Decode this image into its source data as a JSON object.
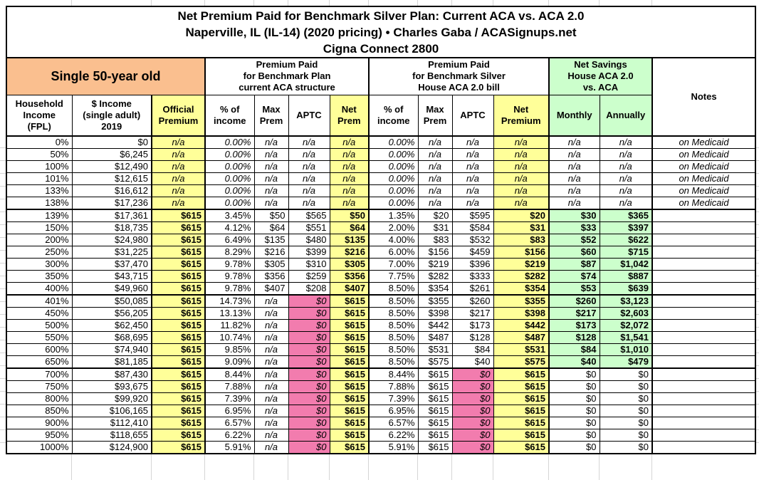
{
  "title": {
    "line1": "Net Premium Paid for Benchmark Silver Plan: Current ACA vs. ACA 2.0",
    "line2": "Naperville, IL (IL-14) (2020 pricing) • Charles Gaba / ACASignups.net",
    "line3": "Cigna Connect 2800"
  },
  "colors": {
    "orange": "#FABF8F",
    "yellow": "#FFFF99",
    "green": "#CCFFCC",
    "pink": "#F27CAE",
    "border": "#000000",
    "gridline": "#D5D5D5"
  },
  "chart_data": {
    "type": "table",
    "title": "Net Premium Paid for Benchmark Silver Plan: Current ACA vs. ACA 2.0",
    "subtitle": "Naperville, IL (IL-14) (2020 pricing) • Charles Gaba / ACASignups.net",
    "plan": "Cigna Connect 2800",
    "groups": {
      "single": "Single 50-year old",
      "aca": "Premium Paid\nfor Benchmark Plan\ncurrent ACA structure",
      "house": "Premium Paid\nfor Benchmark Silver\nHouse ACA 2.0 bill",
      "savings": "Net Savings\nHouse ACA 2.0\nvs. ACA",
      "notes": "Notes"
    },
    "columns": {
      "fpl": "Household\nIncome\n(FPL)",
      "income": "$ Income\n(single adult)\n2019",
      "official": "Official\nPremium",
      "pct": "% of\nincome",
      "max": "Max\nPrem",
      "aptc": "APTC",
      "net_prem": "Net\nPrem",
      "net_premium": "Net\nPremium",
      "monthly": "Monthly",
      "annually": "Annually"
    },
    "rows": [
      {
        "group": "medicaid",
        "fpl": "0%",
        "income": "$0",
        "official": "n/a",
        "a_pct": "0.00%",
        "a_max": "n/a",
        "a_aptc": "n/a",
        "a_net": "n/a",
        "h_pct": "0.00%",
        "h_max": "n/a",
        "h_aptc": "n/a",
        "h_net": "n/a",
        "s_mo": "n/a",
        "s_yr": "n/a",
        "note": "on Medicaid"
      },
      {
        "group": "medicaid",
        "fpl": "50%",
        "income": "$6,245",
        "official": "n/a",
        "a_pct": "0.00%",
        "a_max": "n/a",
        "a_aptc": "n/a",
        "a_net": "n/a",
        "h_pct": "0.00%",
        "h_max": "n/a",
        "h_aptc": "n/a",
        "h_net": "n/a",
        "s_mo": "n/a",
        "s_yr": "n/a",
        "note": "on Medicaid"
      },
      {
        "group": "medicaid",
        "fpl": "100%",
        "income": "$12,490",
        "official": "n/a",
        "a_pct": "0.00%",
        "a_max": "n/a",
        "a_aptc": "n/a",
        "a_net": "n/a",
        "h_pct": "0.00%",
        "h_max": "n/a",
        "h_aptc": "n/a",
        "h_net": "n/a",
        "s_mo": "n/a",
        "s_yr": "n/a",
        "note": "on Medicaid"
      },
      {
        "group": "medicaid",
        "fpl": "101%",
        "income": "$12,615",
        "official": "n/a",
        "a_pct": "0.00%",
        "a_max": "n/a",
        "a_aptc": "n/a",
        "a_net": "n/a",
        "h_pct": "0.00%",
        "h_max": "n/a",
        "h_aptc": "n/a",
        "h_net": "n/a",
        "s_mo": "n/a",
        "s_yr": "n/a",
        "note": "on Medicaid"
      },
      {
        "group": "medicaid",
        "fpl": "133%",
        "income": "$16,612",
        "official": "n/a",
        "a_pct": "0.00%",
        "a_max": "n/a",
        "a_aptc": "n/a",
        "a_net": "n/a",
        "h_pct": "0.00%",
        "h_max": "n/a",
        "h_aptc": "n/a",
        "h_net": "n/a",
        "s_mo": "n/a",
        "s_yr": "n/a",
        "note": "on Medicaid"
      },
      {
        "group": "medicaid",
        "fpl": "138%",
        "income": "$17,236",
        "official": "n/a",
        "a_pct": "0.00%",
        "a_max": "n/a",
        "a_aptc": "n/a",
        "a_net": "n/a",
        "h_pct": "0.00%",
        "h_max": "n/a",
        "h_aptc": "n/a",
        "h_net": "n/a",
        "s_mo": "n/a",
        "s_yr": "n/a",
        "note": "on Medicaid"
      },
      {
        "group": "mid",
        "fpl": "139%",
        "income": "$17,361",
        "official": "$615",
        "a_pct": "3.45%",
        "a_max": "$50",
        "a_aptc": "$565",
        "a_net": "$50",
        "h_pct": "1.35%",
        "h_max": "$20",
        "h_aptc": "$595",
        "h_net": "$20",
        "s_mo": "$30",
        "s_yr": "$365",
        "note": ""
      },
      {
        "group": "mid",
        "fpl": "150%",
        "income": "$18,735",
        "official": "$615",
        "a_pct": "4.12%",
        "a_max": "$64",
        "a_aptc": "$551",
        "a_net": "$64",
        "h_pct": "2.00%",
        "h_max": "$31",
        "h_aptc": "$584",
        "h_net": "$31",
        "s_mo": "$33",
        "s_yr": "$397",
        "note": ""
      },
      {
        "group": "mid",
        "fpl": "200%",
        "income": "$24,980",
        "official": "$615",
        "a_pct": "6.49%",
        "a_max": "$135",
        "a_aptc": "$480",
        "a_net": "$135",
        "h_pct": "4.00%",
        "h_max": "$83",
        "h_aptc": "$532",
        "h_net": "$83",
        "s_mo": "$52",
        "s_yr": "$622",
        "note": ""
      },
      {
        "group": "mid",
        "fpl": "250%",
        "income": "$31,225",
        "official": "$615",
        "a_pct": "8.29%",
        "a_max": "$216",
        "a_aptc": "$399",
        "a_net": "$216",
        "h_pct": "6.00%",
        "h_max": "$156",
        "h_aptc": "$459",
        "h_net": "$156",
        "s_mo": "$60",
        "s_yr": "$715",
        "note": ""
      },
      {
        "group": "mid",
        "fpl": "300%",
        "income": "$37,470",
        "official": "$615",
        "a_pct": "9.78%",
        "a_max": "$305",
        "a_aptc": "$310",
        "a_net": "$305",
        "h_pct": "7.00%",
        "h_max": "$219",
        "h_aptc": "$396",
        "h_net": "$219",
        "s_mo": "$87",
        "s_yr": "$1,042",
        "note": ""
      },
      {
        "group": "mid",
        "fpl": "350%",
        "income": "$43,715",
        "official": "$615",
        "a_pct": "9.78%",
        "a_max": "$356",
        "a_aptc": "$259",
        "a_net": "$356",
        "h_pct": "7.75%",
        "h_max": "$282",
        "h_aptc": "$333",
        "h_net": "$282",
        "s_mo": "$74",
        "s_yr": "$887",
        "note": ""
      },
      {
        "group": "mid",
        "fpl": "400%",
        "income": "$49,960",
        "official": "$615",
        "a_pct": "9.78%",
        "a_max": "$407",
        "a_aptc": "$208",
        "a_net": "$407",
        "h_pct": "8.50%",
        "h_max": "$354",
        "h_aptc": "$261",
        "h_net": "$354",
        "s_mo": "$53",
        "s_yr": "$639",
        "note": ""
      },
      {
        "group": "high",
        "fpl": "401%",
        "income": "$50,085",
        "official": "$615",
        "a_pct": "14.73%",
        "a_max": "n/a",
        "a_aptc": "$0",
        "a_net": "$615",
        "h_pct": "8.50%",
        "h_max": "$355",
        "h_aptc": "$260",
        "h_net": "$355",
        "s_mo": "$260",
        "s_yr": "$3,123",
        "note": ""
      },
      {
        "group": "high",
        "fpl": "450%",
        "income": "$56,205",
        "official": "$615",
        "a_pct": "13.13%",
        "a_max": "n/a",
        "a_aptc": "$0",
        "a_net": "$615",
        "h_pct": "8.50%",
        "h_max": "$398",
        "h_aptc": "$217",
        "h_net": "$398",
        "s_mo": "$217",
        "s_yr": "$2,603",
        "note": ""
      },
      {
        "group": "high",
        "fpl": "500%",
        "income": "$62,450",
        "official": "$615",
        "a_pct": "11.82%",
        "a_max": "n/a",
        "a_aptc": "$0",
        "a_net": "$615",
        "h_pct": "8.50%",
        "h_max": "$442",
        "h_aptc": "$173",
        "h_net": "$442",
        "s_mo": "$173",
        "s_yr": "$2,072",
        "note": ""
      },
      {
        "group": "high",
        "fpl": "550%",
        "income": "$68,695",
        "official": "$615",
        "a_pct": "10.74%",
        "a_max": "n/a",
        "a_aptc": "$0",
        "a_net": "$615",
        "h_pct": "8.50%",
        "h_max": "$487",
        "h_aptc": "$128",
        "h_net": "$487",
        "s_mo": "$128",
        "s_yr": "$1,541",
        "note": ""
      },
      {
        "group": "high",
        "fpl": "600%",
        "income": "$74,940",
        "official": "$615",
        "a_pct": "9.85%",
        "a_max": "n/a",
        "a_aptc": "$0",
        "a_net": "$615",
        "h_pct": "8.50%",
        "h_max": "$531",
        "h_aptc": "$84",
        "h_net": "$531",
        "s_mo": "$84",
        "s_yr": "$1,010",
        "note": ""
      },
      {
        "group": "high",
        "fpl": "650%",
        "income": "$81,185",
        "official": "$615",
        "a_pct": "9.09%",
        "a_max": "n/a",
        "a_aptc": "$0",
        "a_net": "$615",
        "h_pct": "8.50%",
        "h_max": "$575",
        "h_aptc": "$40",
        "h_net": "$575",
        "s_mo": "$40",
        "s_yr": "$479",
        "note": ""
      },
      {
        "group": "top",
        "fpl": "700%",
        "income": "$87,430",
        "official": "$615",
        "a_pct": "8.44%",
        "a_max": "n/a",
        "a_aptc": "$0",
        "a_net": "$615",
        "h_pct": "8.44%",
        "h_max": "$615",
        "h_aptc": "$0",
        "h_net": "$615",
        "s_mo": "$0",
        "s_yr": "$0",
        "note": ""
      },
      {
        "group": "top",
        "fpl": "750%",
        "income": "$93,675",
        "official": "$615",
        "a_pct": "7.88%",
        "a_max": "n/a",
        "a_aptc": "$0",
        "a_net": "$615",
        "h_pct": "7.88%",
        "h_max": "$615",
        "h_aptc": "$0",
        "h_net": "$615",
        "s_mo": "$0",
        "s_yr": "$0",
        "note": ""
      },
      {
        "group": "top",
        "fpl": "800%",
        "income": "$99,920",
        "official": "$615",
        "a_pct": "7.39%",
        "a_max": "n/a",
        "a_aptc": "$0",
        "a_net": "$615",
        "h_pct": "7.39%",
        "h_max": "$615",
        "h_aptc": "$0",
        "h_net": "$615",
        "s_mo": "$0",
        "s_yr": "$0",
        "note": ""
      },
      {
        "group": "top",
        "fpl": "850%",
        "income": "$106,165",
        "official": "$615",
        "a_pct": "6.95%",
        "a_max": "n/a",
        "a_aptc": "$0",
        "a_net": "$615",
        "h_pct": "6.95%",
        "h_max": "$615",
        "h_aptc": "$0",
        "h_net": "$615",
        "s_mo": "$0",
        "s_yr": "$0",
        "note": ""
      },
      {
        "group": "top",
        "fpl": "900%",
        "income": "$112,410",
        "official": "$615",
        "a_pct": "6.57%",
        "a_max": "n/a",
        "a_aptc": "$0",
        "a_net": "$615",
        "h_pct": "6.57%",
        "h_max": "$615",
        "h_aptc": "$0",
        "h_net": "$615",
        "s_mo": "$0",
        "s_yr": "$0",
        "note": ""
      },
      {
        "group": "top",
        "fpl": "950%",
        "income": "$118,655",
        "official": "$615",
        "a_pct": "6.22%",
        "a_max": "n/a",
        "a_aptc": "$0",
        "a_net": "$615",
        "h_pct": "6.22%",
        "h_max": "$615",
        "h_aptc": "$0",
        "h_net": "$615",
        "s_mo": "$0",
        "s_yr": "$0",
        "note": ""
      },
      {
        "group": "top",
        "fpl": "1000%",
        "income": "$124,900",
        "official": "$615",
        "a_pct": "5.91%",
        "a_max": "n/a",
        "a_aptc": "$0",
        "a_net": "$615",
        "h_pct": "5.91%",
        "h_max": "$615",
        "h_aptc": "$0",
        "h_net": "$615",
        "s_mo": "$0",
        "s_yr": "$0",
        "note": ""
      }
    ]
  }
}
